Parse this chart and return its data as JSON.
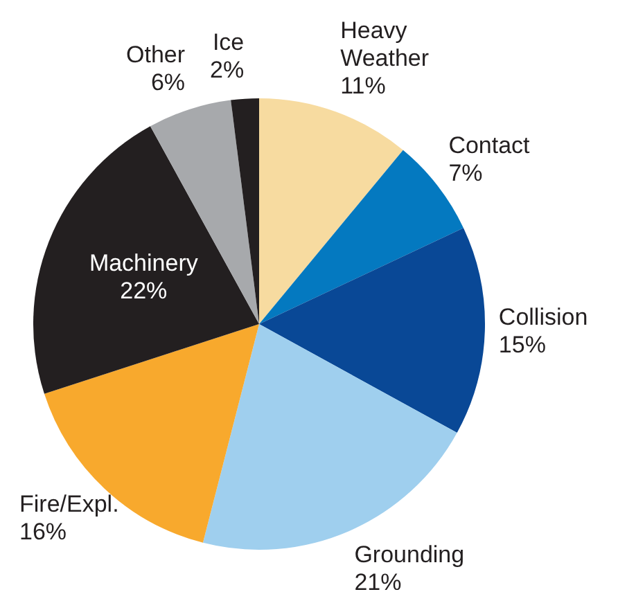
{
  "chart_data": {
    "type": "pie",
    "categories": [
      "Heavy Weather",
      "Contact",
      "Collision",
      "Grounding",
      "Fire/Expl.",
      "Machinery",
      "Other",
      "Ice"
    ],
    "values": [
      11,
      7,
      15,
      21,
      16,
      22,
      6,
      2
    ],
    "colors": [
      "#f7dba0",
      "#0479c0",
      "#094896",
      "#9fcfee",
      "#f8a92d",
      "#231f20",
      "#a7a9ac",
      "#231f20"
    ],
    "value_labels": [
      "11%",
      "7%",
      "15%",
      "21%",
      "16%",
      "22%",
      "6%",
      "2%"
    ],
    "legend": false
  }
}
